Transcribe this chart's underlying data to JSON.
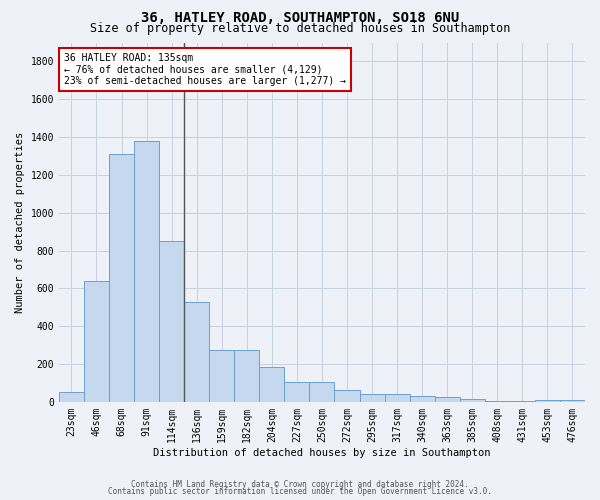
{
  "title_line1": "36, HATLEY ROAD, SOUTHAMPTON, SO18 6NU",
  "title_line2": "Size of property relative to detached houses in Southampton",
  "xlabel": "Distribution of detached houses by size in Southampton",
  "ylabel": "Number of detached properties",
  "categories": [
    "23sqm",
    "46sqm",
    "68sqm",
    "91sqm",
    "114sqm",
    "136sqm",
    "159sqm",
    "182sqm",
    "204sqm",
    "227sqm",
    "250sqm",
    "272sqm",
    "295sqm",
    "317sqm",
    "340sqm",
    "363sqm",
    "385sqm",
    "408sqm",
    "431sqm",
    "453sqm",
    "476sqm"
  ],
  "values": [
    50,
    640,
    1310,
    1380,
    850,
    530,
    275,
    275,
    185,
    105,
    105,
    60,
    40,
    40,
    30,
    25,
    15,
    5,
    5,
    10,
    10
  ],
  "bar_color": "#c5d8ee",
  "bar_edge_color": "#6a9fd0",
  "vline_x_index": 5,
  "vline_color": "#555555",
  "annotation_line1": "36 HATLEY ROAD: 135sqm",
  "annotation_line2": "← 76% of detached houses are smaller (4,129)",
  "annotation_line3": "23% of semi-detached houses are larger (1,277) →",
  "annotation_box_color": "#cc0000",
  "annotation_bg": "#ffffff",
  "ylim": [
    0,
    1900
  ],
  "yticks": [
    0,
    200,
    400,
    600,
    800,
    1000,
    1200,
    1400,
    1600,
    1800
  ],
  "footer_line1": "Contains HM Land Registry data © Crown copyright and database right 2024.",
  "footer_line2": "Contains public sector information licensed under the Open Government Licence v3.0.",
  "bg_color": "#eef2f8",
  "grid_color": "#c8d0de",
  "title1_fontsize": 10,
  "title2_fontsize": 8.5,
  "axis_label_fontsize": 7.5,
  "tick_fontsize": 7,
  "annot_fontsize": 7,
  "footer_fontsize": 5.5
}
